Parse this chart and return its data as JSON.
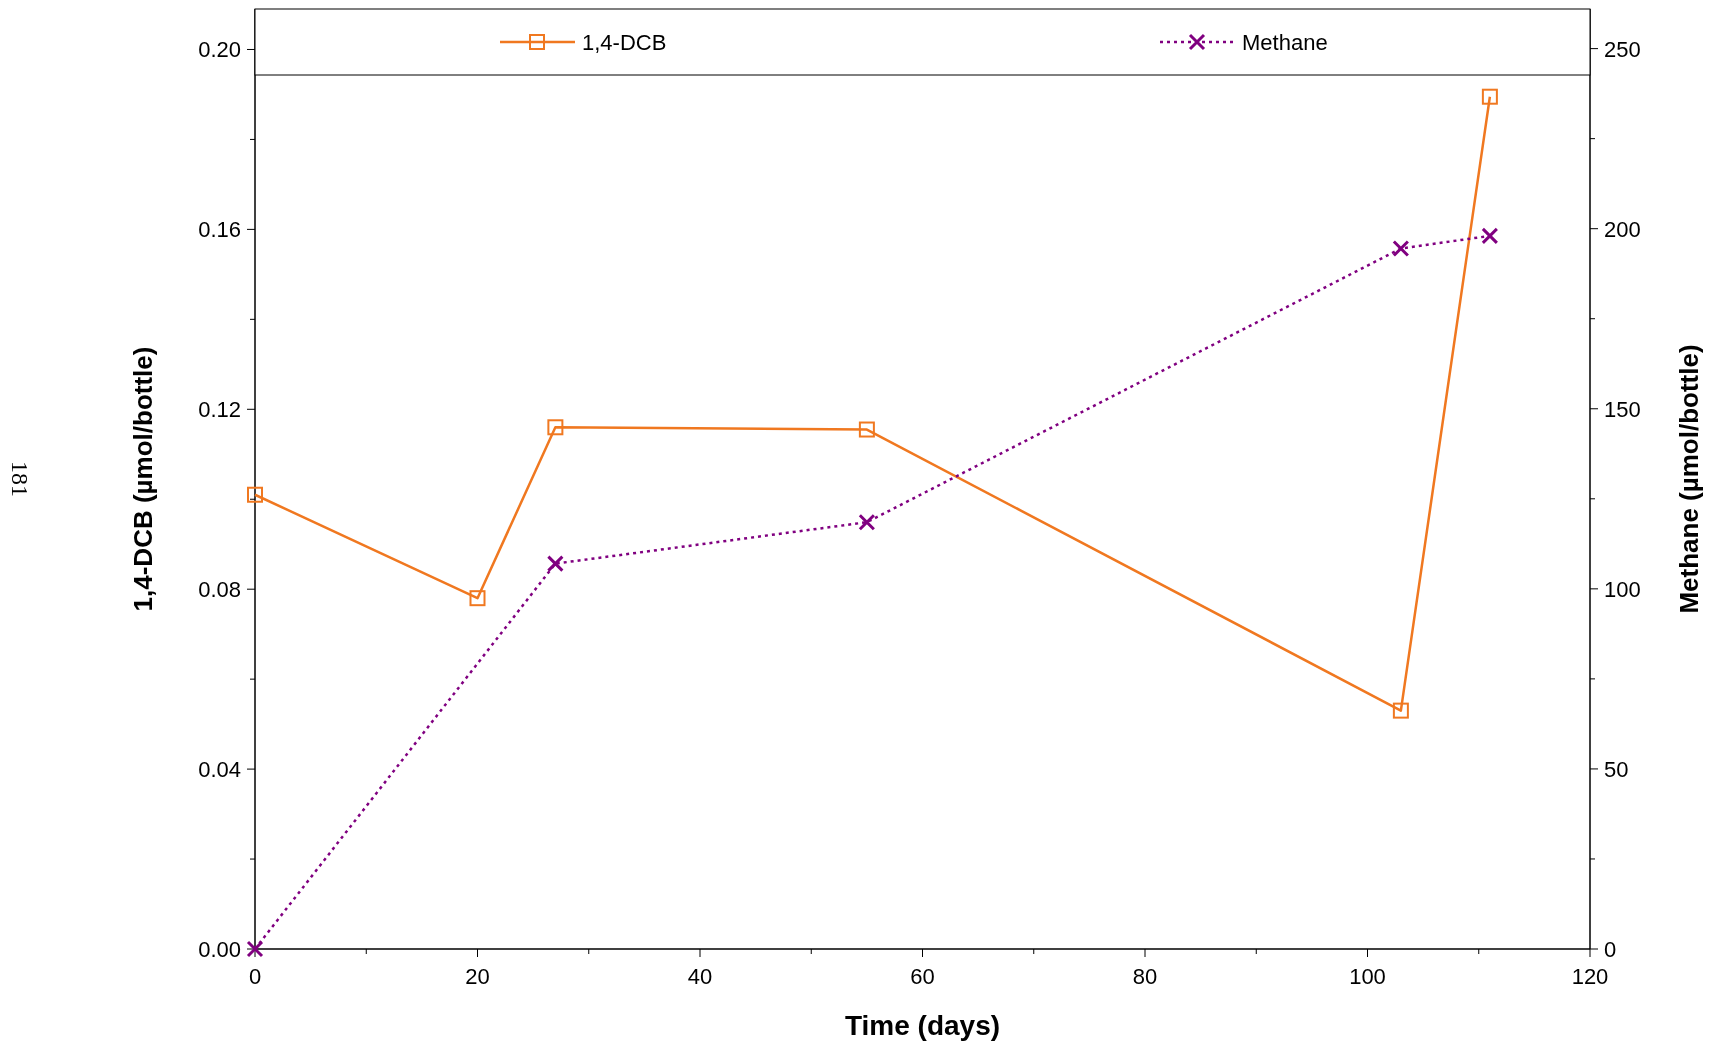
{
  "chart_data": {
    "type": "line",
    "xlabel": "Time (days)",
    "ylabel": "1,4-DCB (µmol/bottle)",
    "y2label": "Methane (µmol/bottle)",
    "xlim": [
      0,
      120
    ],
    "xticks": [
      0,
      {
        "value": 10,
        "label": null
      },
      20,
      {
        "value": 30,
        "label": null
      },
      40,
      {
        "value": 50,
        "label": null
      },
      60,
      {
        "value": 70,
        "label": null
      },
      80,
      {
        "value": 90,
        "label": null
      },
      100,
      {
        "value": 110,
        "label": null
      },
      120
    ],
    "ylim": [
      0,
      0.209
    ],
    "yticks": [
      {
        "value": 0,
        "label": "0.00"
      },
      {
        "value": 0.02,
        "label": null
      },
      0.04,
      {
        "value": 0.06,
        "label": null
      },
      0.08,
      {
        "value": 0.1,
        "label": null
      },
      0.12,
      {
        "value": 0.14,
        "label": null
      },
      0.16,
      {
        "value": 0.18,
        "label": null
      },
      {
        "value": 0.2,
        "label": "0.20"
      }
    ],
    "y2lim": [
      0,
      261
    ],
    "y2ticks": [
      0,
      {
        "value": 25,
        "label": null
      },
      50,
      {
        "value": 75,
        "label": null
      },
      100,
      {
        "value": 125,
        "label": null
      },
      150,
      {
        "value": 175,
        "label": null
      },
      200,
      {
        "value": 225,
        "label": null
      },
      250
    ],
    "legend": "top",
    "grid": false,
    "series": [
      {
        "name": "1,4-DCB",
        "color": "#f07820",
        "marker": "square",
        "line_style": "solid",
        "x": [
          0,
          20,
          27,
          55,
          103,
          111
        ],
        "values": [
          0.101,
          0.078,
          0.116,
          0.1155,
          0.053,
          0.1895
        ]
      },
      {
        "name": "Methane",
        "color": "#800080",
        "marker": "cross",
        "line_style": "dotted",
        "axis": "y2",
        "x": [
          0,
          27,
          55,
          103,
          111
        ],
        "values": [
          0,
          107,
          118.5,
          194.5,
          198
        ]
      }
    ],
    "annotations": [
      "181"
    ]
  }
}
